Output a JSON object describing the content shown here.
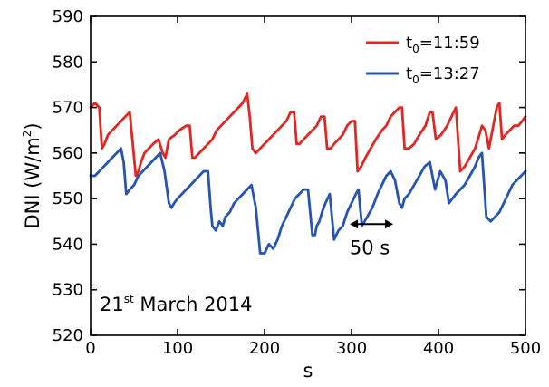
{
  "chart_data": {
    "type": "line",
    "title": "",
    "xlabel": "s",
    "ylabel": {
      "main": "DNI (W/m",
      "sup": "2",
      "close": ")"
    },
    "xlim": [
      0,
      500
    ],
    "ylim": [
      520,
      590
    ],
    "xticks": [
      0,
      100,
      200,
      300,
      400,
      500
    ],
    "yticks": [
      520,
      530,
      540,
      550,
      560,
      570,
      580,
      590
    ],
    "grid": false,
    "legend_position": "top-right",
    "annotations": {
      "scale_bar": {
        "label": "50 s",
        "x_start": 298,
        "x_end": 348,
        "y": 545
      },
      "date": {
        "day": "21",
        "sup": "st",
        "rest": " March 2014"
      }
    },
    "series": [
      {
        "name": {
          "main": "t",
          "sub": "0",
          "rest": "=11:59"
        },
        "color": "#e32622",
        "x": [
          0,
          5,
          10,
          13,
          16,
          20,
          25,
          30,
          35,
          40,
          45,
          52,
          55,
          58,
          62,
          67,
          72,
          78,
          83,
          86,
          90,
          97,
          102,
          110,
          114,
          117,
          120,
          125,
          130,
          135,
          140,
          145,
          150,
          155,
          160,
          165,
          170,
          175,
          180,
          183,
          186,
          190,
          195,
          200,
          205,
          210,
          215,
          220,
          225,
          230,
          234,
          237,
          240,
          245,
          250,
          255,
          260,
          265,
          269,
          272,
          276,
          280,
          285,
          290,
          295,
          300,
          304,
          307,
          311,
          316,
          322,
          328,
          335,
          340,
          345,
          350,
          355,
          358,
          361,
          366,
          372,
          378,
          385,
          390,
          393,
          397,
          403,
          410,
          415,
          420,
          425,
          430,
          436,
          442,
          447,
          450,
          454,
          458,
          462,
          467,
          470,
          473,
          477,
          482,
          487,
          492,
          496,
          500
        ],
        "y": [
          570,
          571,
          570,
          561,
          562,
          564,
          565,
          566,
          567,
          568,
          569,
          555,
          556,
          558,
          560,
          561,
          562,
          563,
          560,
          559,
          563,
          564,
          565,
          566,
          566,
          559,
          559,
          560,
          561,
          562,
          563,
          565,
          566,
          567,
          568,
          569,
          570,
          571,
          573,
          568,
          561,
          560,
          561,
          562,
          563,
          564,
          565,
          566,
          567,
          569,
          569,
          562,
          562,
          563,
          564,
          565,
          566,
          568,
          568,
          561,
          561,
          562,
          563,
          564,
          566,
          567,
          567,
          556,
          557,
          559,
          561,
          563,
          565,
          566,
          568,
          569,
          570,
          570,
          561,
          561,
          562,
          564,
          566,
          569,
          569,
          563,
          564,
          566,
          568,
          570,
          556,
          557,
          559,
          561,
          564,
          566,
          565,
          561,
          565,
          570,
          571,
          563,
          564,
          565,
          566,
          566,
          567,
          568
        ]
      },
      {
        "name": {
          "main": "t",
          "sub": "0",
          "rest": "=13:27"
        },
        "color": "#2654b5",
        "x": [
          0,
          5,
          10,
          15,
          20,
          25,
          30,
          35,
          38,
          41,
          45,
          50,
          55,
          60,
          65,
          70,
          75,
          80,
          85,
          90,
          93,
          96,
          100,
          105,
          110,
          115,
          120,
          125,
          130,
          135,
          138,
          140,
          144,
          148,
          152,
          155,
          160,
          165,
          170,
          175,
          180,
          185,
          190,
          195,
          200,
          205,
          210,
          215,
          220,
          225,
          230,
          235,
          240,
          245,
          250,
          255,
          258,
          260,
          263,
          266,
          270,
          275,
          280,
          285,
          290,
          295,
          300,
          305,
          308,
          312,
          318,
          324,
          330,
          335,
          340,
          345,
          350,
          355,
          358,
          361,
          366,
          372,
          378,
          384,
          390,
          396,
          402,
          408,
          412,
          416,
          420,
          425,
          430,
          436,
          442,
          446,
          450,
          455,
          460,
          465,
          470,
          475,
          480,
          485,
          490,
          495,
          500
        ],
        "y": [
          555,
          555,
          556,
          557,
          558,
          559,
          560,
          561,
          558,
          551,
          552,
          553,
          555,
          556,
          557,
          558,
          559,
          560,
          556,
          549,
          548,
          549,
          550,
          551,
          552,
          553,
          554,
          555,
          556,
          556,
          548,
          544,
          543,
          545,
          544,
          546,
          547,
          549,
          550,
          551,
          552,
          553,
          548,
          538,
          538,
          540,
          539,
          541,
          544,
          546,
          548,
          550,
          551,
          552,
          552,
          542,
          542,
          544,
          545,
          547,
          549,
          551,
          541,
          543,
          544,
          547,
          549,
          551,
          552,
          544,
          546,
          548,
          551,
          553,
          555,
          556,
          554,
          549,
          548,
          550,
          551,
          553,
          555,
          557,
          558,
          552,
          556,
          554,
          549,
          550,
          551,
          552,
          553,
          555,
          557,
          559,
          560,
          546,
          545,
          546,
          547,
          549,
          551,
          553,
          554,
          555,
          556
        ]
      }
    ]
  }
}
